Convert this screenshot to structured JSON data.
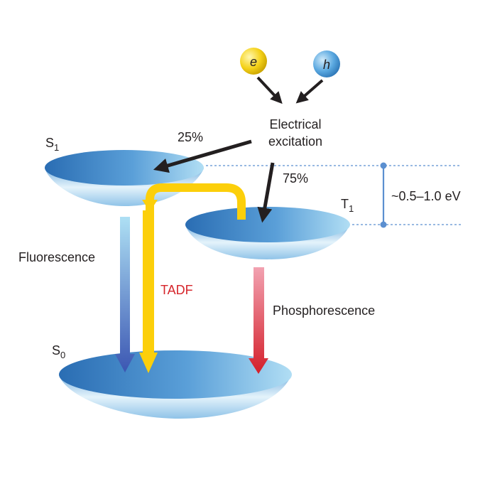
{
  "carriers": {
    "electron": "e",
    "hole": "h"
  },
  "labels": {
    "excitation_line1": "Electrical",
    "excitation_line2": "excitation",
    "singlet_fraction": "25%",
    "triplet_fraction": "75%",
    "s1_main": "S",
    "s1_sub": "1",
    "t1_main": "T",
    "t1_sub": "1",
    "s0_main": "S",
    "s0_sub": "0",
    "energy_gap": "~0.5–1.0 eV",
    "fluorescence": "Fluorescence",
    "tadf": "TADF",
    "phosphorescence": "Phosphorescence"
  },
  "colors": {
    "electron_ball": "#f2d21c",
    "hole_ball": "#5aa8e0",
    "level_dark": "#2f74b8",
    "level_light": "#a9d8f2",
    "tadf_arrow": "#fccf0a",
    "tadf_text": "#d6262c",
    "fluorescence_top": "#a8dcf2",
    "fluorescence_bottom": "#3f5cb5",
    "phosphorescence_top": "#f19cac",
    "phosphorescence_bottom": "#d6202a",
    "gap_marker": "#5b8fd0",
    "text": "#231f20"
  }
}
